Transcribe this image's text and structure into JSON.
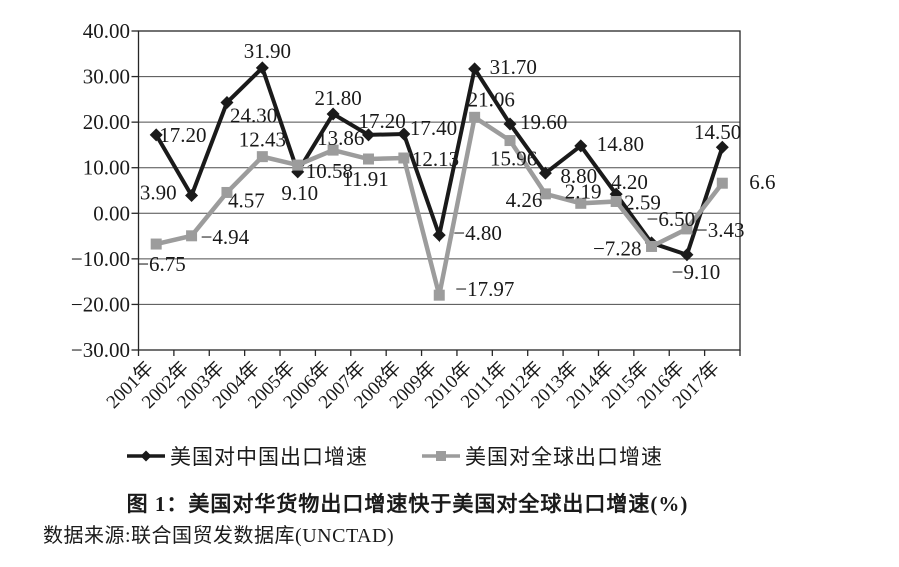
{
  "chart_data": {
    "type": "line",
    "title": "图 1：美国对华货物出口增速快于美国对全球出口增速(%)",
    "xlabel": "",
    "ylabel": "",
    "ylim": [
      -30,
      40
    ],
    "ytick_step": 10,
    "ytick_labels": [
      "40.00",
      "30.00",
      "20.00",
      "10.00",
      "0.00",
      "−10.00",
      "−20.00",
      "−30.00"
    ],
    "grid": true,
    "legend_position": "bottom",
    "categories": [
      "2001年",
      "2002年",
      "2003年",
      "2004年",
      "2005年",
      "2006年",
      "2007年",
      "2008年",
      "2009年",
      "2010年",
      "2011年",
      "2012年",
      "2013年",
      "2014年",
      "2015年",
      "2016年",
      "2017年"
    ],
    "series": [
      {
        "name": "美国对中国出口增速",
        "marker": "diamond",
        "color": "#1a1a1a",
        "values": [
          17.2,
          3.9,
          24.3,
          31.9,
          9.1,
          21.8,
          17.2,
          17.4,
          -4.8,
          31.7,
          19.6,
          8.8,
          14.8,
          4.2,
          -6.5,
          -9.1,
          14.5
        ],
        "labels": [
          "17.20",
          "3.90",
          "24.30",
          "31.90",
          "9.10",
          "21.80",
          "17.20",
          "17.40",
          "−4.80",
          "31.70",
          "19.60",
          "8.80",
          "14.80",
          "4.20",
          "−6.50",
          "−9.10",
          "14.50"
        ],
        "label_offsets": [
          [
            3,
            7,
            "s"
          ],
          [
            -15,
            4,
            "e"
          ],
          [
            3,
            20,
            "s"
          ],
          [
            5,
            -10,
            "m"
          ],
          [
            2,
            28,
            "m"
          ],
          [
            5,
            -9,
            "m"
          ],
          [
            -10,
            -7,
            "s"
          ],
          [
            6,
            1,
            "s"
          ],
          [
            14,
            5,
            "s"
          ],
          [
            15,
            5,
            "s"
          ],
          [
            10,
            5,
            "s"
          ],
          [
            15,
            10,
            "s"
          ],
          [
            16,
            5,
            "s"
          ],
          [
            -5,
            -5,
            "s"
          ],
          [
            -5,
            -17,
            "s"
          ],
          [
            9,
            24,
            "m"
          ],
          [
            19,
            -8,
            "e"
          ]
        ]
      },
      {
        "name": "美国对全球出口增速",
        "marker": "square",
        "color": "#9c9c9c",
        "values": [
          -6.75,
          -4.94,
          4.57,
          12.43,
          10.58,
          13.86,
          11.91,
          12.13,
          -17.97,
          21.06,
          15.96,
          4.26,
          2.19,
          2.59,
          -7.28,
          -3.43,
          6.6
        ],
        "labels": [
          "−6.75",
          "−4.94",
          "4.57",
          "12.43",
          "10.58",
          "13.86",
          "11.91",
          "12.13",
          "−17.97",
          "21.06",
          "15.96",
          "4.26",
          "2.19",
          "2.59",
          "−7.28",
          "−3.43",
          "6.6"
        ],
        "label_offsets": [
          [
            -19,
            27,
            "s"
          ],
          [
            9,
            8,
            "s"
          ],
          [
            1,
            15,
            "s"
          ],
          [
            0,
            -10,
            "m"
          ],
          [
            8,
            13,
            "s"
          ],
          [
            -16,
            -5,
            "s"
          ],
          [
            -3,
            27,
            "m"
          ],
          [
            8,
            8,
            "s"
          ],
          [
            16,
            1,
            "s"
          ],
          [
            -7,
            -11,
            "s"
          ],
          [
            -20,
            25,
            "s"
          ],
          [
            -3,
            13,
            "e"
          ],
          [
            -16,
            -5,
            "s"
          ],
          [
            8,
            8,
            "s"
          ],
          [
            -10,
            9,
            "e"
          ],
          [
            9,
            8,
            "s"
          ],
          [
            27,
            6,
            "s"
          ]
        ]
      }
    ]
  },
  "source_note": "数据来源:联合国贸发数据库(UNCTAD)"
}
